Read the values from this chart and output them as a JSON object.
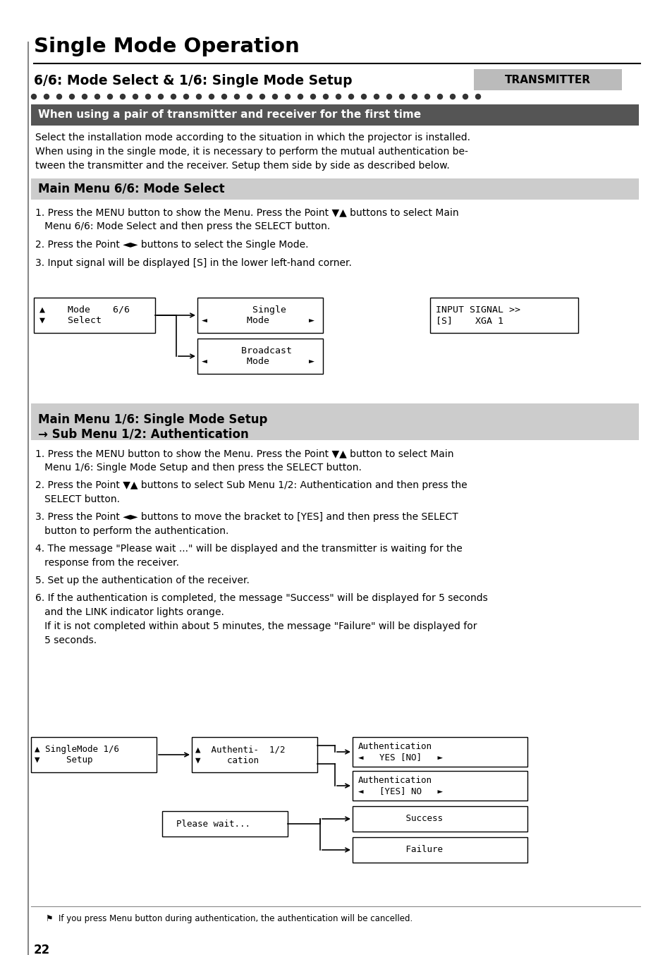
{
  "page_bg": "#ffffff",
  "title": "Single Mode Operation",
  "subtitle": "6/6: Mode Select & 1/6: Single Mode Setup",
  "transmitter_label": "TRANSMITTER",
  "section1_text": "When using a pair of transmitter and receiver for the first time",
  "section2_text": "Main Menu 6/6: Mode Select",
  "section3_text_line1": "Main Menu 1/6: Single Mode Setup",
  "section3_text_line2": "→ Sub Menu 1/2: Authentication",
  "para1_lines": [
    "Select the installation mode according to the situation in which the projector is installed.",
    "When using in the single mode, it is necessary to perform the mutual authentication be-",
    "tween the transmitter and the receiver. Setup them side by side as described below."
  ],
  "items_section2": [
    [
      "1. Press the MENU button to show the Menu. Press the Point ▼▲ buttons to select Main",
      "   Menu ",
      "6/6: Mode Select",
      " and then press the SELECT button."
    ],
    [
      "2. Press the Point ◄► buttons to select the ",
      "Single Mode",
      "."
    ],
    [
      "3. Input signal will be displayed [S] in the lower left-hand corner."
    ]
  ],
  "items_section3": [
    [
      "1. Press the MENU button to show the Menu. Press the Point ▼▲ button to select Main",
      "   Menu ",
      "1/6: Single Mode Setup",
      " and then press the SELECT button."
    ],
    [
      "2. Press the Point ▼▲ buttons to select Sub Menu ",
      "1/2: Authentication",
      " and then press the",
      "   SELECT button."
    ],
    [
      "3. Press the Point ◄► buttons to move the bracket to [YES] and then press the SELECT",
      "   button to perform the authentication."
    ],
    [
      "4. The message \"Please wait ...\" will be displayed and the transmitter is waiting for the",
      "   response from the receiver."
    ],
    [
      "5. Set up the authentication of the receiver."
    ],
    [
      "6. If the authentication is completed, the message \"Success\" will be displayed for 5 seconds",
      "   and the LINK indicator lights orange.",
      "   If it is not completed within about 5 minutes, the message \"Failure\" will be displayed for",
      "   5 seconds."
    ]
  ],
  "footer_note": "⚑  If you press Menu button during authentication, the authentication will be cancelled.",
  "page_number": "22"
}
